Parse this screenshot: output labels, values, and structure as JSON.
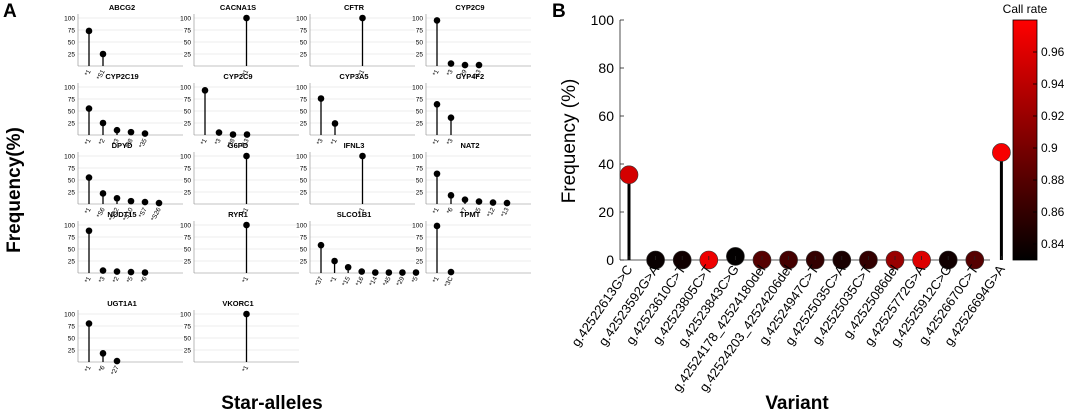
{
  "panel_a": {
    "label": "A",
    "ylabel": "Frequency(%)",
    "xlabel": "Star-alleles"
  },
  "panel_b": {
    "label": "B",
    "ylabel": "Frequency (%)",
    "xlabel": "Variant",
    "colorbar_title": "Call rate"
  },
  "chart_data": [
    {
      "type": "lollipop-small-multiples",
      "panel": "A",
      "ylim": [
        0,
        100
      ],
      "yticks": [
        25,
        50,
        75,
        100
      ],
      "grid": true,
      "genes": [
        {
          "title": "ABCG2",
          "alleles": [
            "*1",
            "*S1"
          ],
          "values": [
            73,
            25
          ]
        },
        {
          "title": "CACNA1S",
          "alleles": [
            "*1"
          ],
          "values": [
            100
          ]
        },
        {
          "title": "CFTR",
          "alleles": [
            "*1"
          ],
          "values": [
            100
          ]
        },
        {
          "title": "CYP2C9",
          "alleles": [
            "*1",
            "*3",
            "*29",
            "*13"
          ],
          "values": [
            95,
            5,
            2,
            2
          ]
        },
        {
          "title": "CYP2C19",
          "alleles": [
            "*1",
            "*2",
            "*3",
            "*38",
            "*35"
          ],
          "values": [
            55,
            25,
            10,
            6,
            3
          ]
        },
        {
          "title": "CYP2C9",
          "alleles": [
            "*1",
            "*3",
            "*28",
            "*13"
          ],
          "values": [
            93,
            5,
            1,
            1
          ]
        },
        {
          "title": "CYP3A5",
          "alleles": [
            "*3",
            "*1"
          ],
          "values": [
            76,
            24
          ]
        },
        {
          "title": "CYP4F2",
          "alleles": [
            "*1",
            "*3"
          ],
          "values": [
            64,
            36
          ]
        },
        {
          "title": "DPYD",
          "alleles": [
            "*1",
            "*S6",
            "*S32",
            "*S10",
            "*S7",
            "*S26"
          ],
          "values": [
            55,
            22,
            12,
            6,
            4,
            2
          ]
        },
        {
          "title": "G6PD",
          "alleles": [
            "*1"
          ],
          "values": [
            100
          ]
        },
        {
          "title": "IFNL3",
          "alleles": [
            "*1"
          ],
          "values": [
            100
          ]
        },
        {
          "title": "NAT2",
          "alleles": [
            "*1",
            "*6",
            "*7",
            "*5",
            "*12",
            "*13"
          ],
          "values": [
            63,
            18,
            9,
            5,
            3,
            2
          ]
        },
        {
          "title": "NUDT15",
          "alleles": [
            "*1",
            "*3",
            "*2",
            "*5",
            "*6"
          ],
          "values": [
            88,
            5,
            3,
            2,
            1
          ]
        },
        {
          "title": "RYR1",
          "alleles": [
            "*1"
          ],
          "values": [
            100
          ]
        },
        {
          "title": "SLCO1B1",
          "alleles": [
            "*37",
            "*1",
            "*15",
            "*16",
            "*14",
            "*45",
            "*29",
            "*5"
          ],
          "values": [
            58,
            25,
            12,
            3,
            1,
            1,
            1,
            1
          ]
        },
        {
          "title": "TPMT",
          "alleles": [
            "*1",
            "*3C"
          ],
          "values": [
            98,
            2
          ]
        },
        {
          "title": "UGT1A1",
          "alleles": [
            "*1",
            "*6",
            "*27"
          ],
          "values": [
            80,
            18,
            2
          ]
        },
        {
          "title": "VKORC1",
          "alleles": [
            "*1"
          ],
          "values": [
            100
          ]
        }
      ]
    },
    {
      "type": "lollipop",
      "panel": "B",
      "title": "",
      "xlabel": "Variant",
      "ylabel": "Frequency (%)",
      "ylim": [
        0,
        100
      ],
      "yticks": [
        0,
        20,
        40,
        60,
        80,
        100
      ],
      "categories": [
        "g.42522613G>C",
        "g.42523592G>A",
        "g.42523610C>T",
        "g.42523805C>T",
        "g.42523843C>G",
        "g.42524178_42524180del",
        "g.42524203_42524206del",
        "g.42524947C>T",
        "g.42525035C>A",
        "g.42525035C>T",
        "g.42525086del",
        "g.42525772G>A",
        "g.42525912C>G",
        "g.42526670C>T",
        "g.42526694G>A"
      ],
      "values": [
        35.5,
        0,
        0,
        0,
        1.5,
        0,
        0,
        0,
        0,
        0,
        0,
        0,
        0,
        0,
        44.8
      ],
      "call_rate": [
        0.955,
        0.835,
        0.84,
        0.97,
        0.832,
        0.88,
        0.87,
        0.86,
        0.845,
        0.86,
        0.92,
        0.96,
        0.84,
        0.88,
        0.975
      ],
      "colorbar": {
        "title": "Call rate",
        "range": [
          0.83,
          0.98
        ],
        "ticks": [
          "0.84",
          "0.86",
          "0.88",
          "0.9",
          "0.92",
          "0.94",
          "0.96"
        ]
      }
    }
  ]
}
